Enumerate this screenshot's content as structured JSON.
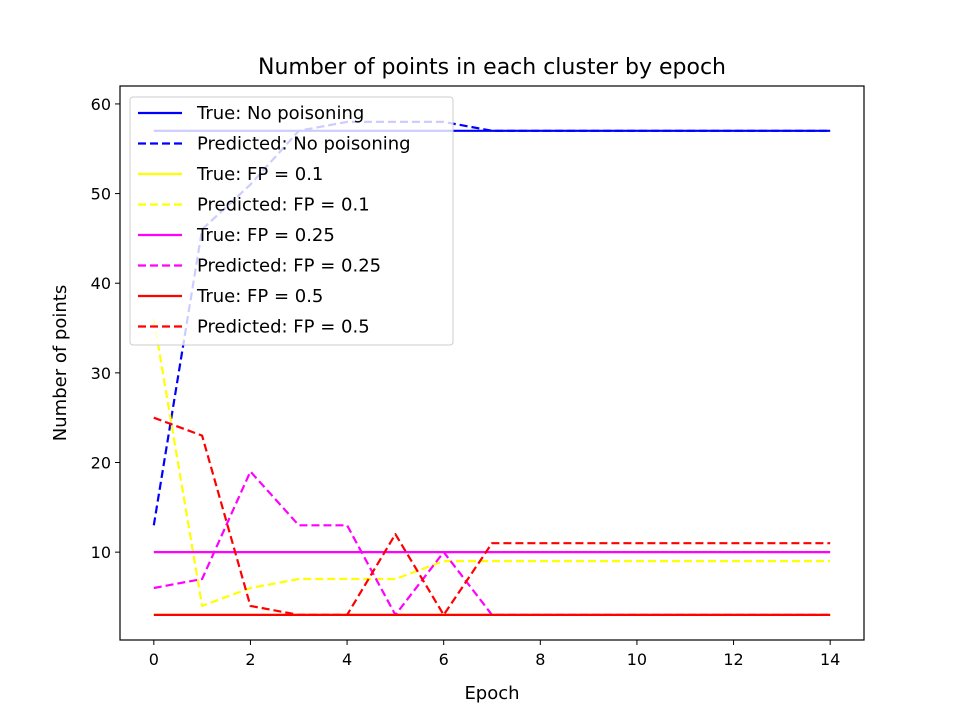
{
  "chart_data": {
    "type": "line",
    "title": "Number of points in each cluster by epoch",
    "xlabel": "Epoch",
    "ylabel": "Number of points",
    "xlim": [
      -0.7,
      14.7
    ],
    "ylim": [
      0.2,
      62
    ],
    "xticks": [
      0,
      2,
      4,
      6,
      8,
      10,
      12,
      14
    ],
    "yticks": [
      10,
      20,
      30,
      40,
      50,
      60
    ],
    "grid": false,
    "legend": "top-left",
    "x": [
      0,
      1,
      2,
      3,
      4,
      5,
      6,
      7,
      8,
      9,
      10,
      11,
      12,
      13,
      14
    ],
    "series": [
      {
        "name": "True: No poisoning",
        "color": "#0000ff",
        "style": "solid",
        "values": [
          57,
          57,
          57,
          57,
          57,
          57,
          57,
          57,
          57,
          57,
          57,
          57,
          57,
          57,
          57
        ]
      },
      {
        "name": "Predicted: No poisoning",
        "color": "#0000ff",
        "style": "dashed",
        "values": [
          13,
          46,
          51,
          57,
          58,
          58,
          58,
          57,
          57,
          57,
          57,
          57,
          57,
          57,
          57
        ]
      },
      {
        "name": "True: FP = 0.1",
        "color": "#ffff00",
        "style": "solid",
        "values": [
          3,
          3,
          3,
          3,
          3,
          3,
          3,
          3,
          3,
          3,
          3,
          3,
          3,
          3,
          3
        ]
      },
      {
        "name": "Predicted: FP = 0.1",
        "color": "#ffff00",
        "style": "dashed",
        "values": [
          36,
          4,
          6,
          7,
          7,
          7,
          9,
          9,
          9,
          9,
          9,
          9,
          9,
          9,
          9
        ]
      },
      {
        "name": "True: FP = 0.25",
        "color": "#ff00ff",
        "style": "solid",
        "values": [
          10,
          10,
          10,
          10,
          10,
          10,
          10,
          10,
          10,
          10,
          10,
          10,
          10,
          10,
          10
        ]
      },
      {
        "name": "Predicted: FP = 0.25",
        "color": "#ff00ff",
        "style": "dashed",
        "values": [
          6,
          7,
          19,
          13,
          13,
          3,
          10,
          3,
          3,
          3,
          3,
          3,
          3,
          3,
          3
        ]
      },
      {
        "name": "True: FP = 0.5",
        "color": "#ff0000",
        "style": "solid",
        "values": [
          3,
          3,
          3,
          3,
          3,
          3,
          3,
          3,
          3,
          3,
          3,
          3,
          3,
          3,
          3
        ]
      },
      {
        "name": "Predicted: FP = 0.5",
        "color": "#ff0000",
        "style": "dashed",
        "values": [
          25,
          23,
          4,
          3,
          3,
          12,
          3,
          11,
          11,
          11,
          11,
          11,
          11,
          11,
          11
        ]
      }
    ]
  }
}
